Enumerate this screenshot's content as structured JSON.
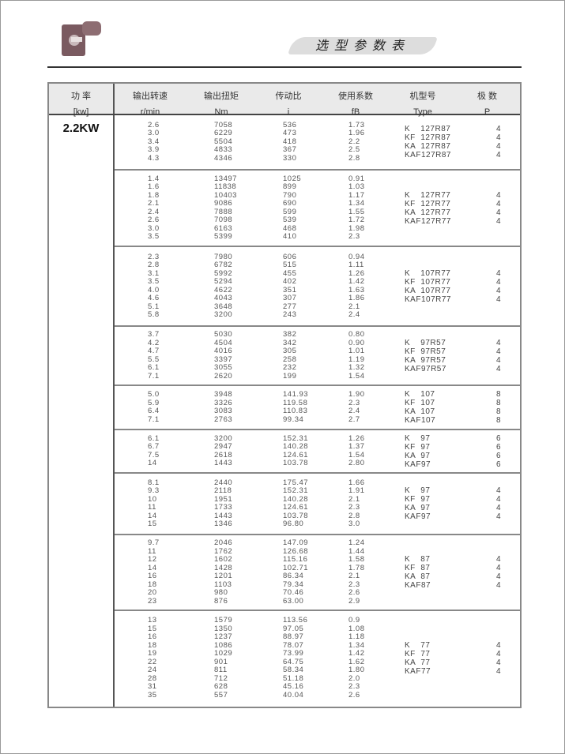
{
  "header": {
    "title": "选型参数表"
  },
  "table": {
    "columns": [
      {
        "cn": "功 率",
        "en": "[kw]"
      },
      {
        "cn": "输出转速",
        "en": "r/min"
      },
      {
        "cn": "输出扭矩",
        "en": "Nm"
      },
      {
        "cn": "传动比",
        "en": "i"
      },
      {
        "cn": "使用系数",
        "en": "fB"
      },
      {
        "cn": "机型号",
        "en": "Type"
      },
      {
        "cn": "极 数",
        "en": "P"
      }
    ],
    "power": "2.2KW",
    "groups": [
      {
        "rows": [
          [
            "2.6",
            "7058",
            "536",
            "1.73"
          ],
          [
            "3.0",
            "6229",
            "473",
            "1.96"
          ],
          [
            "3.4",
            "5504",
            "418",
            "2.2"
          ],
          [
            "3.9",
            "4833",
            "367",
            "2.5"
          ],
          [
            "4.3",
            "4346",
            "330",
            "2.8"
          ]
        ],
        "types": [
          [
            "K    127R87",
            "4"
          ],
          [
            "KF  127R87",
            "4"
          ],
          [
            "KA  127R87",
            "4"
          ],
          [
            "KAF127R87",
            "4"
          ]
        ]
      },
      {
        "rows": [
          [
            "1.4",
            "13497",
            "1025",
            "0.91"
          ],
          [
            "1.6",
            "11838",
            "899",
            "1.03"
          ],
          [
            "1.8",
            "10403",
            "790",
            "1.17"
          ],
          [
            "2.1",
            "9086",
            "690",
            "1.34"
          ],
          [
            "2.4",
            "7888",
            "599",
            "1.55"
          ],
          [
            "2.6",
            "7098",
            "539",
            "1.72"
          ],
          [
            "3.0",
            "6163",
            "468",
            "1.98"
          ],
          [
            "3.5",
            "5399",
            "410",
            "2.3"
          ]
        ],
        "types": [
          [
            "K    127R77",
            "4"
          ],
          [
            "KF  127R77",
            "4"
          ],
          [
            "KA  127R77",
            "4"
          ],
          [
            "KAF127R77",
            "4"
          ]
        ]
      },
      {
        "rows": [
          [
            "2.3",
            "7980",
            "606",
            "0.94"
          ],
          [
            "2.8",
            "6782",
            "515",
            "1.11"
          ],
          [
            "3.1",
            "5992",
            "455",
            "1.26"
          ],
          [
            "3.5",
            "5294",
            "402",
            "1.42"
          ],
          [
            "4.0",
            "4622",
            "351",
            "1.63"
          ],
          [
            "4.6",
            "4043",
            "307",
            "1.86"
          ],
          [
            "5.1",
            "3648",
            "277",
            "2.1"
          ],
          [
            "5.8",
            "3200",
            "243",
            "2.4"
          ]
        ],
        "types": [
          [
            "K    107R77",
            "4"
          ],
          [
            "KF  107R77",
            "4"
          ],
          [
            "KA  107R77",
            "4"
          ],
          [
            "KAF107R77",
            "4"
          ]
        ]
      },
      {
        "rows": [
          [
            "3.7",
            "5030",
            "382",
            "0.80"
          ],
          [
            "4.2",
            "4504",
            "342",
            "0.90"
          ],
          [
            "4.7",
            "4016",
            "305",
            "1.01"
          ],
          [
            "5.5",
            "3397",
            "258",
            "1.19"
          ],
          [
            "6.1",
            "3055",
            "232",
            "1.32"
          ],
          [
            "7.1",
            "2620",
            "199",
            "1.54"
          ]
        ],
        "types": [
          [
            "K    97R57",
            "4"
          ],
          [
            "KF  97R57",
            "4"
          ],
          [
            "KA  97R57",
            "4"
          ],
          [
            "KAF97R57",
            "4"
          ]
        ]
      },
      {
        "rows": [
          [
            "5.0",
            "3948",
            "141.93",
            "1.90"
          ],
          [
            "5.9",
            "3326",
            "119.58",
            "2.3"
          ],
          [
            "6.4",
            "3083",
            "110.83",
            "2.4"
          ],
          [
            "7.1",
            "2763",
            "99.34",
            "2.7"
          ]
        ],
        "types": [
          [
            "K    107",
            "8"
          ],
          [
            "KF  107",
            "8"
          ],
          [
            "KA  107",
            "8"
          ],
          [
            "KAF107",
            "8"
          ]
        ]
      },
      {
        "rows": [
          [
            "6.1",
            "3200",
            "152.31",
            "1.26"
          ],
          [
            "6.7",
            "2947",
            "140.28",
            "1.37"
          ],
          [
            "7.5",
            "2618",
            "124.61",
            "1.54"
          ],
          [
            "14",
            "1443",
            "103.78",
            "2.80"
          ]
        ],
        "types": [
          [
            "K    97",
            "6"
          ],
          [
            "KF  97",
            "6"
          ],
          [
            "KA  97",
            "6"
          ],
          [
            "KAF97",
            "6"
          ]
        ]
      },
      {
        "rows": [
          [
            "8.1",
            "2440",
            "175.47",
            "1.66"
          ],
          [
            "9.3",
            "2118",
            "152.31",
            "1.91"
          ],
          [
            "10",
            "1951",
            "140.28",
            "2.1"
          ],
          [
            "11",
            "1733",
            "124.61",
            "2.3"
          ],
          [
            "14",
            "1443",
            "103.78",
            "2.8"
          ],
          [
            "15",
            "1346",
            "96.80",
            "3.0"
          ]
        ],
        "types": [
          [
            "K    97",
            "4"
          ],
          [
            "KF  97",
            "4"
          ],
          [
            "KA  97",
            "4"
          ],
          [
            "KAF97",
            "4"
          ]
        ]
      },
      {
        "rows": [
          [
            "9.7",
            "2046",
            "147.09",
            "1.24"
          ],
          [
            "11",
            "1762",
            "126.68",
            "1.44"
          ],
          [
            "12",
            "1602",
            "115.16",
            "1.58"
          ],
          [
            "14",
            "1428",
            "102.71",
            "1.78"
          ],
          [
            "16",
            "1201",
            "86.34",
            "2.1"
          ],
          [
            "18",
            "1103",
            "79.34",
            "2.3"
          ],
          [
            "20",
            "980",
            "70.46",
            "2.6"
          ],
          [
            "23",
            "876",
            "63.00",
            "2.9"
          ]
        ],
        "types": [
          [
            "K    87",
            "4"
          ],
          [
            "KF  87",
            "4"
          ],
          [
            "KA  87",
            "4"
          ],
          [
            "KAF87",
            "4"
          ]
        ]
      },
      {
        "rows": [
          [
            "13",
            "1579",
            "113.56",
            "0.9"
          ],
          [
            "15",
            "1350",
            "97.05",
            "1.08"
          ],
          [
            "16",
            "1237",
            "88.97",
            "1.18"
          ],
          [
            "18",
            "1086",
            "78.07",
            "1.34"
          ],
          [
            "19",
            "1029",
            "73.99",
            "1.42"
          ],
          [
            "22",
            "901",
            "64.75",
            "1.62"
          ],
          [
            "24",
            "811",
            "58.34",
            "1.80"
          ],
          [
            "28",
            "712",
            "51.18",
            "2.0"
          ],
          [
            "31",
            "628",
            "45.16",
            "2.3"
          ],
          [
            "35",
            "557",
            "40.04",
            "2.6"
          ]
        ],
        "types": [
          [
            "K    77",
            "4"
          ],
          [
            "KF  77",
            "4"
          ],
          [
            "KA  77",
            "4"
          ],
          [
            "KAF77",
            "4"
          ]
        ]
      }
    ]
  }
}
